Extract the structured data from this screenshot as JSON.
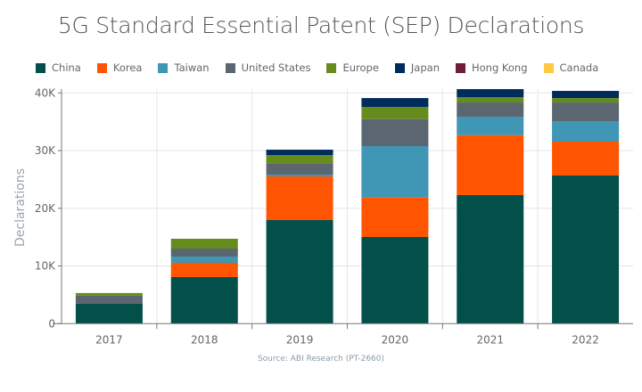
{
  "chart_data": {
    "type": "bar",
    "stacked": true,
    "title": "5G Standard Essential Patent (SEP) Declarations",
    "xlabel": "",
    "ylabel": "Declarations",
    "ylim": [
      0,
      40600
    ],
    "yticks": [
      0,
      10000,
      20000,
      30000,
      40000
    ],
    "ytick_labels": [
      "0",
      "10K",
      "20K",
      "30K",
      "40K"
    ],
    "categories": [
      "2017",
      "2018",
      "2019",
      "2020",
      "2021",
      "2022"
    ],
    "grid": true,
    "legend_position": "top",
    "series": [
      {
        "name": "China",
        "color": "#03504a",
        "values": [
          3450,
          8080,
          17960,
          15030,
          22290,
          25680
        ]
      },
      {
        "name": "Korea",
        "color": "#ff5500",
        "values": [
          0,
          2470,
          7570,
          6840,
          10390,
          5870
        ]
      },
      {
        "name": "Taiwan",
        "color": "#3f96b5",
        "values": [
          0,
          1080,
          310,
          8910,
          3190,
          3550
        ]
      },
      {
        "name": "United States",
        "color": "#5c6670",
        "values": [
          1400,
          1390,
          1950,
          4680,
          2470,
          3240
        ]
      },
      {
        "name": "Europe",
        "color": "#668c1e",
        "values": [
          460,
          1700,
          1440,
          2110,
          930,
          770
        ]
      },
      {
        "name": "Japan",
        "color": "#002c5c",
        "values": [
          0,
          0,
          930,
          1540,
          1390,
          1240
        ]
      },
      {
        "name": "Hong Kong",
        "color": "#6e1e3a",
        "values": [
          0,
          0,
          0,
          0,
          0,
          0
        ]
      },
      {
        "name": "Canada",
        "color": "#ffc845",
        "values": [
          0,
          0,
          0,
          0,
          0,
          0
        ]
      }
    ],
    "source": "Source: ABI Research (PT-2660)"
  }
}
